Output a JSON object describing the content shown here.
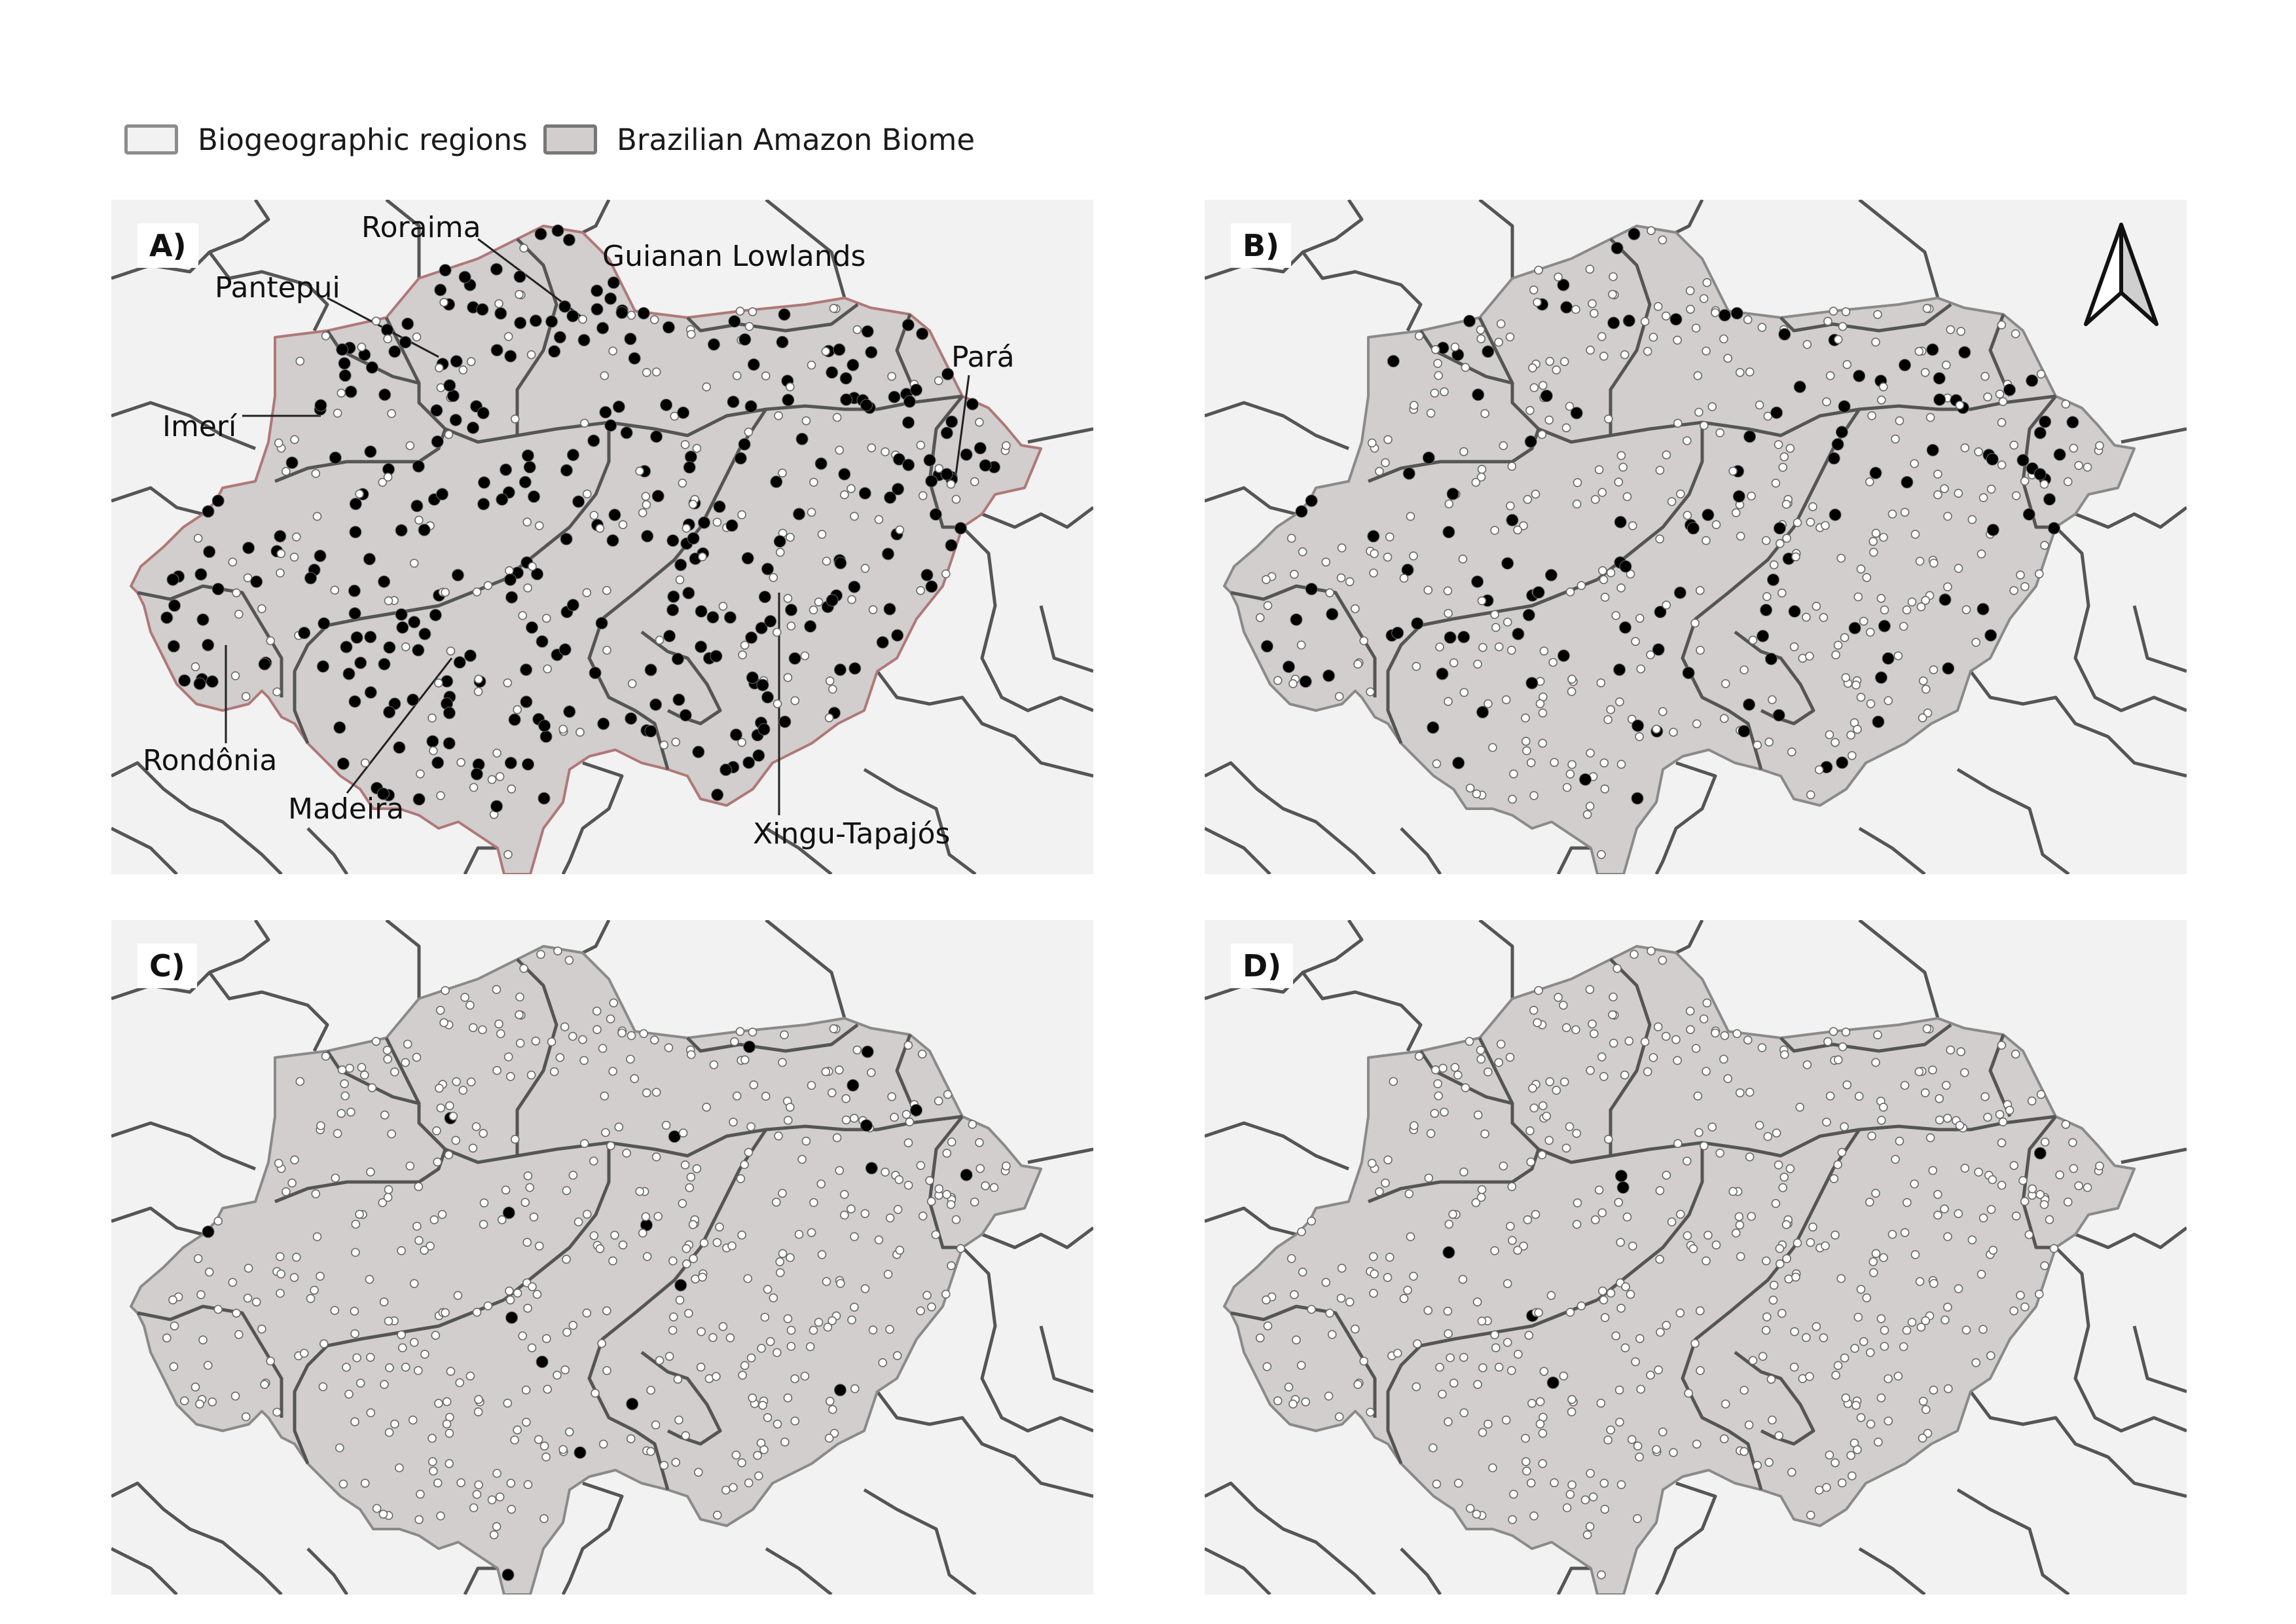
{
  "legend": [
    {
      "label": "Biogeographic regions",
      "fill": "#f2f2f2",
      "stroke": "#8c8c8c"
    },
    {
      "label": "Brazilian Amazon Biome",
      "fill": "#d1cecd",
      "stroke": "#777777"
    }
  ],
  "colors": {
    "biogeographic_fill": "#f2f2f2",
    "biome_fill": "#d1cecd",
    "region_line": "#555555",
    "biome_outline_panel_a": "#b07878",
    "presence_point": "#000000",
    "absence_point": "#ffffff"
  },
  "north_arrow": {
    "icon": "north-arrow-icon"
  },
  "panels": [
    {
      "id": "A",
      "letter": "A)",
      "presence_level": 0.62,
      "seed": 11
    },
    {
      "id": "B",
      "letter": "B)",
      "presence_level": 0.22,
      "seed": 23
    },
    {
      "id": "C",
      "letter": "C)",
      "presence_level": 0.04,
      "seed": 37
    },
    {
      "id": "D",
      "letter": "D)",
      "presence_level": 0.012,
      "seed": 51
    }
  ],
  "region_labels": [
    {
      "name": "Roraima"
    },
    {
      "name": "Guianan Lowlands"
    },
    {
      "name": "Pantepui"
    },
    {
      "name": "Pará"
    },
    {
      "name": "Imerí"
    },
    {
      "name": "Rondônia"
    },
    {
      "name": "Madeira"
    },
    {
      "name": "Xingu-Tapajós"
    }
  ]
}
